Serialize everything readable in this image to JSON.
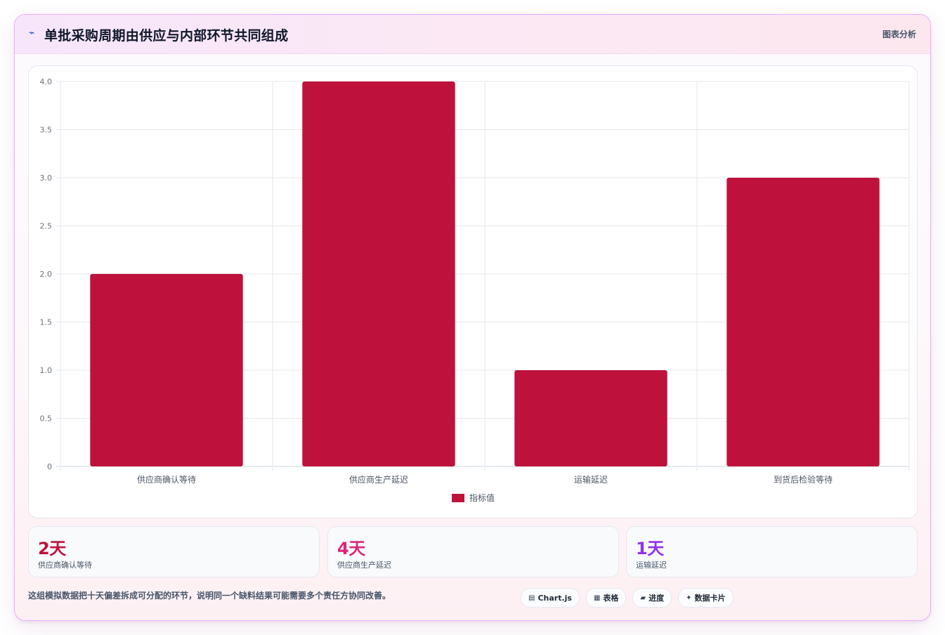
{
  "header": {
    "icon": "chart-line-icon",
    "title": "单批采购周期由供应与内部环节共同组成",
    "tag": "图表分析"
  },
  "chart_data": {
    "type": "bar",
    "categories": [
      "供应商确认等待",
      "供应商生产延迟",
      "运输延迟",
      "到货后检验等待"
    ],
    "series": [
      {
        "name": "指标值",
        "values": [
          2,
          4,
          1,
          3
        ],
        "color": "#be123c"
      }
    ],
    "ylim": [
      0,
      4
    ],
    "yticks": [
      "0",
      "0.5",
      "1.0",
      "1.5",
      "2.0",
      "2.5",
      "3.0",
      "3.5",
      "4.0"
    ],
    "ytick_values": [
      0,
      0.5,
      1,
      1.5,
      2,
      2.5,
      3,
      3.5,
      4
    ],
    "grid": true,
    "legend": "bottom-center"
  },
  "stats": [
    {
      "value": "2天",
      "label": "供应商确认等待",
      "color": "#be123c"
    },
    {
      "value": "4天",
      "label": "供应商生产延迟",
      "color": "#db2777"
    },
    {
      "value": "1天",
      "label": "运输延迟",
      "color": "#9333ea"
    }
  ],
  "footnote": "这组模拟数据把十天偏差拆成可分配的环节，说明同一个缺料结果可能需要多个责任方协同改善。",
  "chips": [
    {
      "icon": "chart-icon",
      "glyph": "▤",
      "label": "Chart.js"
    },
    {
      "icon": "table-icon",
      "glyph": "▦",
      "label": "表格"
    },
    {
      "icon": "progress-icon",
      "glyph": "▰",
      "label": "进度"
    },
    {
      "icon": "sparkle-icon",
      "glyph": "✦",
      "label": "数据卡片"
    }
  ]
}
